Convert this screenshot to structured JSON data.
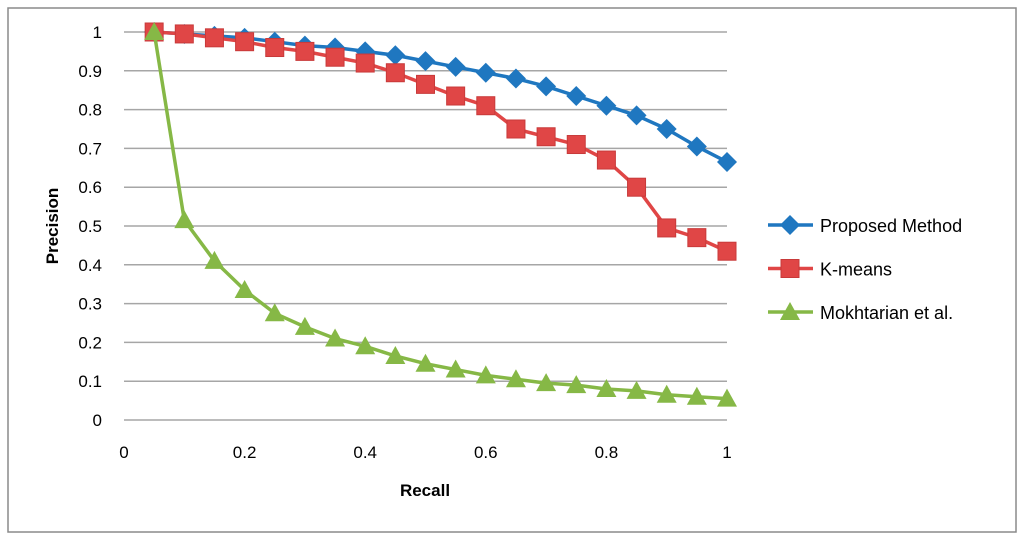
{
  "chart_data": {
    "type": "line",
    "title": "",
    "xlabel": "Recall",
    "ylabel": "Precision",
    "xlim": [
      0,
      1
    ],
    "ylim": [
      0,
      1
    ],
    "xticks": [
      "0",
      "0.2",
      "0.4",
      "0.6",
      "0.8",
      "1"
    ],
    "yticks": [
      "0",
      "0.1",
      "0.2",
      "0.3",
      "0.4",
      "0.5",
      "0.6",
      "0.7",
      "0.8",
      "0.9",
      "1"
    ],
    "grid": "horizontal",
    "legend_position": "right",
    "x": [
      0.05,
      0.1,
      0.15,
      0.2,
      0.25,
      0.3,
      0.35,
      0.4,
      0.45,
      0.5,
      0.55,
      0.6,
      0.65,
      0.7,
      0.75,
      0.8,
      0.85,
      0.9,
      0.95,
      1.0
    ],
    "series": [
      {
        "name": "Proposed Method",
        "color": "#1f77c0",
        "marker": "diamond",
        "values": [
          1,
          0.995,
          0.99,
          0.985,
          0.975,
          0.965,
          0.96,
          0.95,
          0.94,
          0.925,
          0.91,
          0.895,
          0.88,
          0.86,
          0.835,
          0.81,
          0.785,
          0.75,
          0.705,
          0.665
        ]
      },
      {
        "name": "K-means",
        "color": "#e04646",
        "marker": "square",
        "values": [
          1,
          0.995,
          0.985,
          0.975,
          0.96,
          0.95,
          0.935,
          0.92,
          0.895,
          0.865,
          0.835,
          0.81,
          0.75,
          0.73,
          0.71,
          0.67,
          0.6,
          0.495,
          0.47,
          0.435
        ]
      },
      {
        "name": "Mokhtarian et al.",
        "color": "#86b846",
        "marker": "triangle",
        "values": [
          1,
          0.515,
          0.41,
          0.335,
          0.275,
          0.24,
          0.21,
          0.19,
          0.165,
          0.145,
          0.13,
          0.115,
          0.105,
          0.095,
          0.09,
          0.08,
          0.075,
          0.065,
          0.06,
          0.055
        ]
      }
    ]
  }
}
